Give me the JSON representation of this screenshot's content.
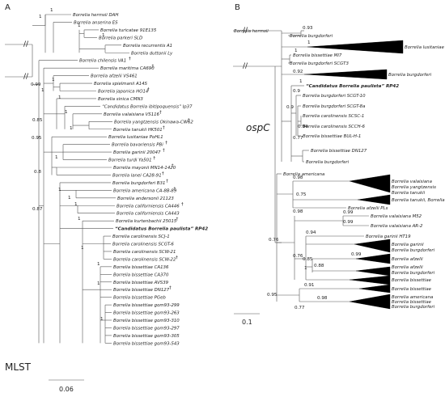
{
  "panel_a": {
    "label": "A",
    "tree_label": "MLST",
    "scale_label": "0.06",
    "taxa": [
      "Borrelia hermsii DAH",
      "Borrelia anserina ES",
      "Borrelia turicatae 91E135",
      "Borrelia parkeri SLD",
      "Borrelia recurrentis A1",
      "Borrelia duttonii Ly",
      "Borrelia chilensis VA1",
      "Borrelia maritima CA690",
      "Borrelia afzelii VS461",
      "Borrelia spielmanii A14S",
      "Borrelia japonica HO14",
      "Borrelia sinica CMN3",
      "“Candidatus Borrelia ibitipoquensis” Ip37",
      "Borrelia valaisiana VS116",
      "Borrelia yangtzensis Okinawa-CW62",
      "Borrelia tanukii HK501",
      "Borrelia lusitaniae PoHL1",
      "Borrelia bavariensis PBi",
      "Borrelia garinii 20047",
      "Borrelia turdi Ya501",
      "Borrelia mayonii MN14-1420",
      "Borrelia lanei CA28-91",
      "Borrelia burgdorferi B31",
      "Borrelia americana CA-8B-89",
      "Borrelia andersonii 21123",
      "Borrelia californiensis CA446",
      "Borrelia californiensis CA443",
      "Borrelia kurtenbachii 25015",
      "“Candidatus Borrelia paulista” RP42",
      "Borrelia carolinensis SCJ-1",
      "Borrelia carolinensis SCGT-6",
      "Borrelia carolinensis SCW-21",
      "Borrelia carolinensis SCW-22",
      "Borrelia bissettiae CA136",
      "Borrelia bissettiae CA370",
      "Borrelia bissettiae AVS39",
      "Borrelia bissettiae DN127",
      "Borrelia bissettiae PGeb",
      "Borrelia bissettiae gom93-299",
      "Borrelia bissettiae gom93-263",
      "Borrelia bissettiae gom93-310",
      "Borrelia bissettiae gom93-297",
      "Borrelia bissettiae gom93-305",
      "Borrelia bissettiae gom93-543"
    ],
    "daggers": [
      6,
      7,
      10,
      13,
      14,
      15,
      17,
      18,
      19,
      20,
      21,
      22,
      23,
      25,
      27,
      32,
      36
    ],
    "bold_taxa": [
      28
    ],
    "support": [
      "1",
      "1",
      "1",
      "1",
      "0.99",
      "1",
      "0.85",
      "0.95",
      "0.8",
      "0.87",
      "1",
      "1",
      "1",
      "1",
      "1",
      "1",
      "1",
      "1",
      "1",
      "1",
      "1",
      "1",
      "1"
    ]
  },
  "panel_b": {
    "label": "B",
    "tree_label": "ospC",
    "scale_label": "0.1",
    "taxa": [
      "Borrelia hermsii",
      "Borrelia burgdorferi",
      "Borrelia lusitaniae",
      "Borrelia bissettiae MI7",
      "Borrelia burgdorferi SCGT3",
      "Borrelia burgdorferi",
      "“Candidatus Borrelia paulista” RP42",
      "Borrelia burgdorferi SCGT-10",
      "Borrelia burgdorferi SCGT-8a",
      "Borrelia carolinensis SCSC-1",
      "Borrelia carolinensis SCCH-6",
      "Borrelia bissettiae BUL-H-1",
      "Borrelia bissettiae DN127",
      "Borrelia burgdorferi",
      "Borrelia americana",
      "Borrelia valaisiana",
      "Borrelia yangtzensis",
      "Borrelia tanukii",
      "Borrelia tanukii, Borrelia japonica",
      "Borrelia afzelii PLs",
      "Borrelia valaisiana M52",
      "Borrelia valaisiana AR-2",
      "Borrelia garinii HT19",
      "Borrelia garinii",
      "Borrelia burgdorferi",
      "Borrelia afzelii",
      "Borrelia afzelii",
      "Borrelia burgdorferi",
      "Borrelia bissettiae",
      "Borrelia bissettiae",
      "Borrelia americana",
      "Borrelia bissettiae",
      "Borrelia burgdorferi"
    ],
    "bold_taxa": [
      6
    ],
    "support": [
      "0.93",
      "1",
      "1",
      "0.92",
      "1",
      "0.9",
      "0.77",
      "0.9",
      "0.94",
      "0.98",
      "0.75",
      "0.98",
      "0.76",
      "0.95",
      "0.99",
      "0.99",
      "0.94",
      "0.76",
      "0.99",
      "0.85",
      "0.88",
      "1",
      "0.91",
      "0.98",
      "0.77"
    ]
  }
}
